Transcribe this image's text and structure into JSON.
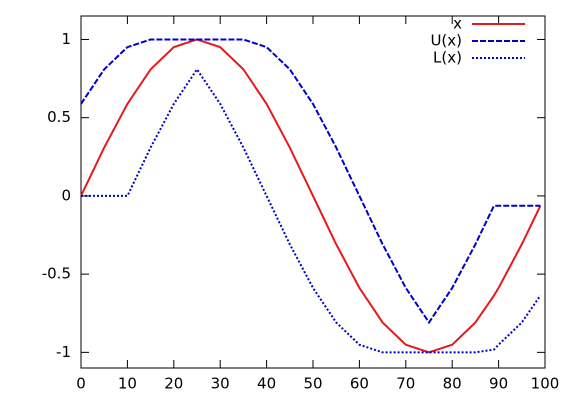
{
  "chart_data": {
    "type": "line",
    "x": [
      0,
      5,
      10,
      15,
      20,
      25,
      30,
      35,
      40,
      45,
      50,
      55,
      60,
      65,
      70,
      75,
      80,
      85,
      89,
      90,
      95,
      99
    ],
    "series": [
      {
        "name": "x",
        "color": "#e41a1c",
        "dash": "solid",
        "values": [
          0,
          0.309,
          0.588,
          0.809,
          0.951,
          1,
          0.951,
          0.809,
          0.588,
          0.309,
          0,
          -0.309,
          -0.588,
          -0.809,
          -0.951,
          -1,
          -0.951,
          -0.809,
          -0.637,
          -0.588,
          -0.309,
          -0.063
        ]
      },
      {
        "name": "U(x)",
        "color": "#0000cc",
        "dash": "dashed",
        "values": [
          0.588,
          0.809,
          0.951,
          1,
          1,
          1,
          1,
          1,
          0.951,
          0.809,
          0.588,
          0.309,
          0,
          -0.309,
          -0.588,
          -0.809,
          -0.588,
          -0.309,
          -0.063,
          -0.063,
          -0.063,
          -0.063
        ]
      },
      {
        "name": "L(x)",
        "color": "#0000cc",
        "dash": "dotted",
        "values": [
          0,
          0,
          0,
          0.309,
          0.588,
          0.809,
          0.588,
          0.309,
          0,
          -0.309,
          -0.588,
          -0.809,
          -0.951,
          -1,
          -1,
          -1,
          -1,
          -1,
          -0.982,
          -0.951,
          -0.809,
          -0.637
        ]
      }
    ],
    "xlim": [
      0,
      100
    ],
    "xticks": [
      0,
      10,
      20,
      30,
      40,
      50,
      60,
      70,
      80,
      90,
      100
    ],
    "ylim": [
      -1.1,
      1.15
    ],
    "yticks": [
      -1,
      -0.5,
      0,
      0.5,
      1
    ],
    "grid": false,
    "legend": "top-right"
  }
}
